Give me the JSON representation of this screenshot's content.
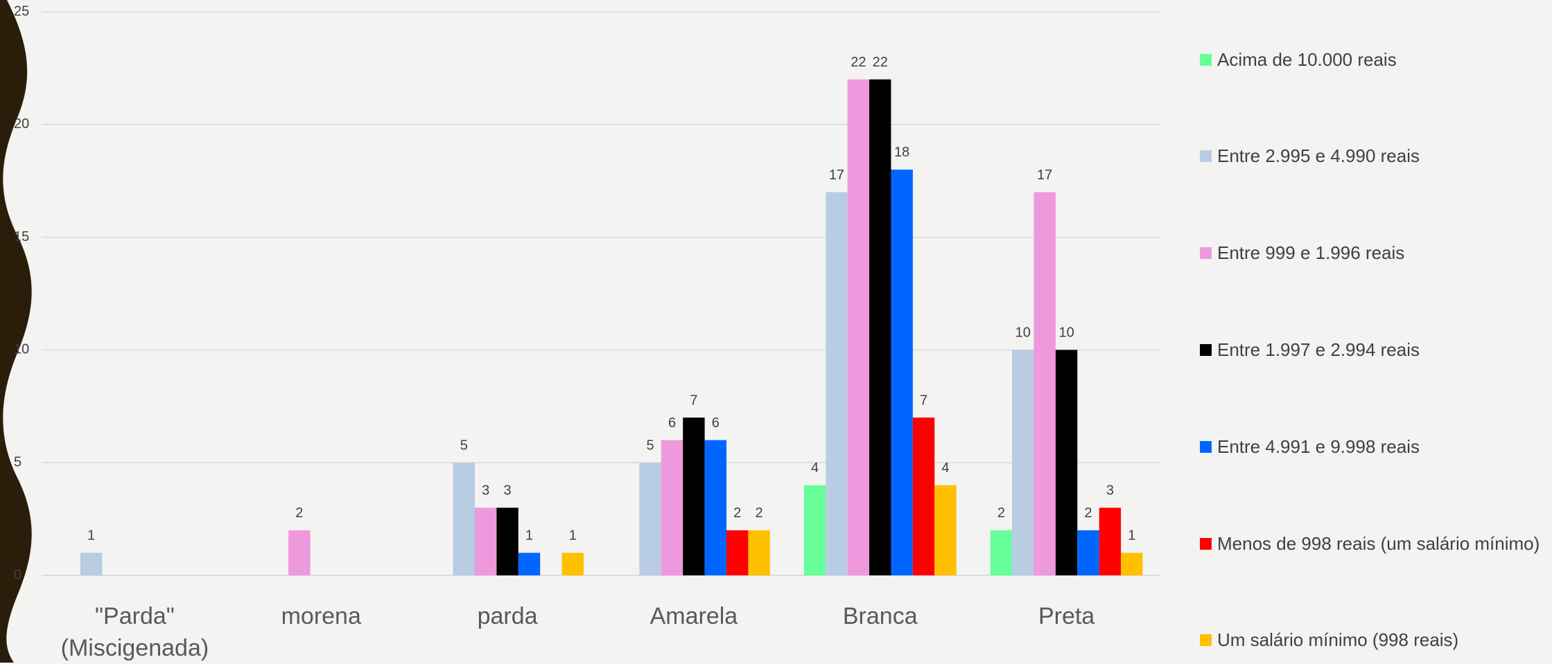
{
  "chart_data": {
    "type": "bar",
    "categories": [
      "\"Parda\" (Miscigenada)",
      "morena",
      "parda",
      "Amarela",
      "Branca",
      "Preta"
    ],
    "series": [
      {
        "name": "Acima de 10.000 reais",
        "color": "#66ff99",
        "values": [
          null,
          null,
          null,
          null,
          4,
          2
        ]
      },
      {
        "name": "Entre  2.995 e 4.990 reais",
        "color": "#b8cce4",
        "values": [
          1,
          null,
          5,
          5,
          17,
          10
        ]
      },
      {
        "name": "Entre  999 e 1.996 reais",
        "color": "#ee99dd",
        "values": [
          null,
          2,
          3,
          6,
          22,
          17
        ]
      },
      {
        "name": "Entre 1.997 e  2.994 reais",
        "color": "#000000",
        "values": [
          null,
          null,
          3,
          7,
          22,
          10
        ]
      },
      {
        "name": "Entre 4.991 e 9.998 reais",
        "color": "#0066ff",
        "values": [
          null,
          null,
          1,
          6,
          18,
          2
        ]
      },
      {
        "name": "Menos de 998 reais (um salário mínimo)",
        "color": "#ff0000",
        "values": [
          null,
          null,
          null,
          2,
          7,
          3
        ]
      },
      {
        "name": "Um salário mínimo (998 reais)",
        "color": "#ffc000",
        "values": [
          null,
          null,
          1,
          2,
          4,
          1
        ]
      }
    ],
    "ylim": [
      0,
      25
    ],
    "yticks": [
      0,
      5,
      10,
      15,
      20,
      25
    ],
    "grid": true,
    "legend": "right"
  }
}
